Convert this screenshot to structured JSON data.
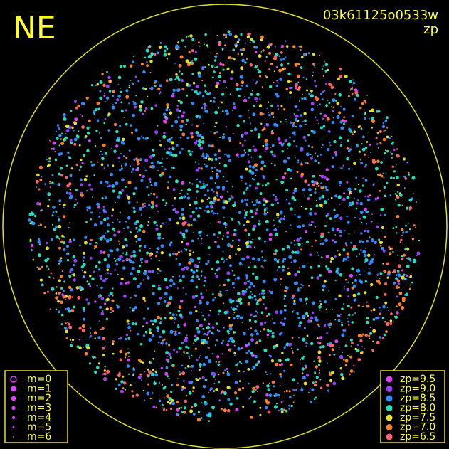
{
  "header": {
    "direction": "NE",
    "image_id": "03k61125o0533w",
    "color_key": "zp"
  },
  "magnitude_legend": [
    {
      "label": "m=0"
    },
    {
      "label": "m=1"
    },
    {
      "label": "m=2"
    },
    {
      "label": "m=3"
    },
    {
      "label": "m=4"
    },
    {
      "label": "m=5"
    },
    {
      "label": "m=6"
    }
  ],
  "zp_legend": [
    {
      "label": "zp=9.5",
      "color": "#e040ff"
    },
    {
      "label": "zp=9.0",
      "color": "#9a3cff"
    },
    {
      "label": "zp=8.5",
      "color": "#2a8cff"
    },
    {
      "label": "zp=8.0",
      "color": "#20e0c0"
    },
    {
      "label": "zp=7.5",
      "color": "#e8e020"
    },
    {
      "label": "zp=7.0",
      "color": "#ff8020"
    },
    {
      "label": "zp=6.5",
      "color": "#ff6070"
    }
  ]
}
